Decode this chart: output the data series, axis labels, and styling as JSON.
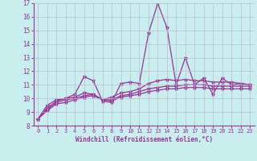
{
  "xlabel": "Windchill (Refroidissement éolien,°C)",
  "xlim": [
    -0.5,
    23.5
  ],
  "ylim": [
    8,
    17
  ],
  "xticks": [
    0,
    1,
    2,
    3,
    4,
    5,
    6,
    7,
    8,
    9,
    10,
    11,
    12,
    13,
    14,
    15,
    16,
    17,
    18,
    19,
    20,
    21,
    22,
    23
  ],
  "yticks": [
    8,
    9,
    10,
    11,
    12,
    13,
    14,
    15,
    16,
    17
  ],
  "bg_color": "#c8eeee",
  "grid_color": "#bbbbcc",
  "line_color": "#993399",
  "lines": [
    [
      8.5,
      9.5,
      9.9,
      10.0,
      10.3,
      11.6,
      11.3,
      9.8,
      9.7,
      11.1,
      11.2,
      11.1,
      14.8,
      17.0,
      15.2,
      11.0,
      13.0,
      11.0,
      11.5,
      10.3,
      11.5,
      11.0,
      11.1,
      11.0
    ],
    [
      8.5,
      9.3,
      9.8,
      10.0,
      10.1,
      10.4,
      10.3,
      9.9,
      10.1,
      10.4,
      10.5,
      10.7,
      11.1,
      11.3,
      11.4,
      11.3,
      11.4,
      11.3,
      11.3,
      11.2,
      11.2,
      11.2,
      11.1,
      11.0
    ],
    [
      8.5,
      9.2,
      9.7,
      9.9,
      10.0,
      10.2,
      10.3,
      9.9,
      9.9,
      10.2,
      10.3,
      10.5,
      10.7,
      10.8,
      10.9,
      10.9,
      11.0,
      11.0,
      11.0,
      10.9,
      10.9,
      10.9,
      10.9,
      10.9
    ],
    [
      8.5,
      9.1,
      9.6,
      9.7,
      9.9,
      10.1,
      10.2,
      9.9,
      9.8,
      10.1,
      10.2,
      10.3,
      10.5,
      10.6,
      10.7,
      10.7,
      10.8,
      10.8,
      10.8,
      10.7,
      10.7,
      10.7,
      10.7,
      10.7
    ]
  ]
}
